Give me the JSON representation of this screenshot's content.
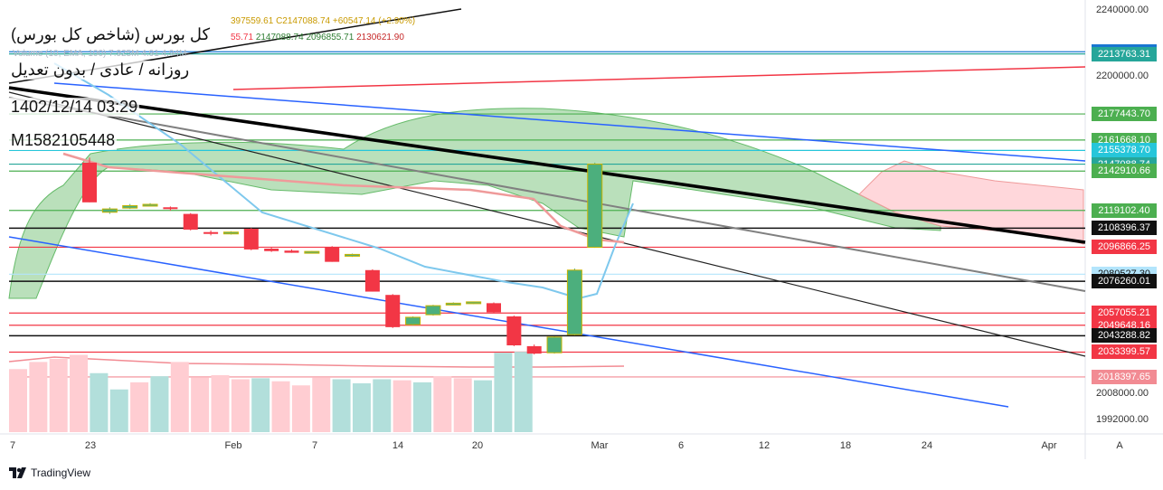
{
  "info": {
    "title": "کل بورس (شاخص کل بورس)",
    "subtitle": "روزانه / عادی / بدون تعدیل",
    "datetime": "1402/12/14 03:29",
    "code": "M1582105448"
  },
  "legend": {
    "ohlc_fragment_a": "397559.61",
    "ohlc_close": "C2147088.74",
    "ohlc_change": "+60547.14 (+2.90%)",
    "ind_a": "55.71",
    "ind_b": "2147088.74",
    "ind_c": "2096855.71",
    "ind_d": "2130621.90",
    "volume": "Volume (10, EMA, 100)  7.925M  4.91  4.94M"
  },
  "chart_data": {
    "type": "candlestick",
    "title": "کل بورس (شاخص کل بورس)",
    "ylim": [
      1985000,
      2242000
    ],
    "yticks": [
      "2240000.00",
      "2200000.00",
      "2008000.00",
      "1992000.00"
    ],
    "xticks": [
      "7",
      "23",
      "Feb",
      "7",
      "14",
      "20",
      "Mar",
      "6",
      "12",
      "18",
      "24",
      "Apr"
    ],
    "candles": [
      {
        "o": 2148000,
        "h": 2151000,
        "l": 2124000,
        "c": 2124000
      },
      {
        "o": 2118000,
        "h": 2121000,
        "l": 2117000,
        "c": 2120000
      },
      {
        "o": 2120500,
        "h": 2123000,
        "l": 2120000,
        "c": 2122000
      },
      {
        "o": 2122500,
        "h": 2123500,
        "l": 2121500,
        "c": 2122800
      },
      {
        "o": 2121000,
        "h": 2121500,
        "l": 2119000,
        "c": 2120000
      },
      {
        "o": 2117000,
        "h": 2117500,
        "l": 2107000,
        "c": 2107500
      },
      {
        "o": 2106000,
        "h": 2107000,
        "l": 2104000,
        "c": 2105000
      },
      {
        "o": 2105500,
        "h": 2106500,
        "l": 2104500,
        "c": 2106000
      },
      {
        "o": 2108000,
        "h": 2108500,
        "l": 2095000,
        "c": 2095500
      },
      {
        "o": 2096000,
        "h": 2096500,
        "l": 2094000,
        "c": 2094500
      },
      {
        "o": 2094800,
        "h": 2095500,
        "l": 2093500,
        "c": 2093500
      },
      {
        "o": 2093800,
        "h": 2094500,
        "l": 2093500,
        "c": 2094300
      },
      {
        "o": 2097000,
        "h": 2097500,
        "l": 2088000,
        "c": 2088000
      },
      {
        "o": 2092000,
        "h": 2093000,
        "l": 2091000,
        "c": 2092500
      },
      {
        "o": 2083000,
        "h": 2083500,
        "l": 2070000,
        "c": 2070000
      },
      {
        "o": 2068000,
        "h": 2068500,
        "l": 2048000,
        "c": 2048500
      },
      {
        "o": 2050000,
        "h": 2055000,
        "l": 2049500,
        "c": 2054500
      },
      {
        "o": 2056000,
        "h": 2062000,
        "l": 2055500,
        "c": 2061500
      },
      {
        "o": 2063000,
        "h": 2063500,
        "l": 2062000,
        "c": 2063000
      },
      {
        "o": 2063500,
        "h": 2064000,
        "l": 2062500,
        "c": 2063800
      },
      {
        "o": 2063000,
        "h": 2063500,
        "l": 2057000,
        "c": 2057500
      },
      {
        "o": 2055000,
        "h": 2055500,
        "l": 2037000,
        "c": 2037500
      },
      {
        "o": 2037000,
        "h": 2038000,
        "l": 2032000,
        "c": 2032500
      },
      {
        "o": 2033000,
        "h": 2043000,
        "l": 2032500,
        "c": 2042500
      },
      {
        "o": 2044000,
        "h": 2084000,
        "l": 2043500,
        "c": 2083000
      },
      {
        "o": 2096800,
        "h": 2148000,
        "l": 2096500,
        "c": 2147088.74
      }
    ],
    "volume": [
      6.2,
      6.9,
      7.2,
      7.6,
      5.8,
      4.2,
      4.9,
      5.5,
      6.9,
      5.4,
      5.6,
      5.2,
      5.3,
      5.0,
      4.6,
      5.4,
      5.2,
      4.8,
      5.2,
      5.1,
      4.9,
      5.5,
      5.3,
      5.1,
      7.8,
      7.9
    ],
    "volume_up": [
      false,
      false,
      false,
      false,
      true,
      true,
      false,
      true,
      false,
      false,
      false,
      false,
      true,
      false,
      false,
      false,
      true,
      true,
      true,
      false,
      true,
      false,
      false,
      true,
      true,
      true
    ],
    "horizontal_levels": [
      {
        "value": 2215081.76,
        "label": "2215081.76",
        "bg": "#1976d2",
        "fg": "#ffffff"
      },
      {
        "value": 2213763.31,
        "label": "2213763.31",
        "bg": "#26a69a",
        "fg": "#ffffff"
      },
      {
        "value": 2177443.7,
        "label": "2177443.70",
        "bg": "#4caf50",
        "fg": "#ffffff"
      },
      {
        "value": 2161668.1,
        "label": "2161668.10",
        "bg": "#4caf50",
        "fg": "#ffffff"
      },
      {
        "value": 2155378.7,
        "label": "2155378.70",
        "bg": "#26c6da",
        "fg": "#ffffff"
      },
      {
        "value": 2147088.74,
        "label": "2147088.74",
        "bg": "#26a69a",
        "fg": "#ffffff"
      },
      {
        "value": 2142910.66,
        "label": "2142910.66",
        "bg": "#4caf50",
        "fg": "#ffffff"
      },
      {
        "value": 2119102.4,
        "label": "2119102.40",
        "bg": "#4caf50",
        "fg": "#ffffff"
      },
      {
        "value": 2108396.37,
        "label": "2108396.37",
        "bg": "#111111",
        "fg": "#ffffff"
      },
      {
        "value": 2096866.25,
        "label": "2096866.25",
        "bg": "#f23645",
        "fg": "#ffffff"
      },
      {
        "value": 2080527.3,
        "label": "2080527.30",
        "bg": "#b3e5fc",
        "fg": "#111111"
      },
      {
        "value": 2076260.01,
        "label": "2076260.01",
        "bg": "#111111",
        "fg": "#ffffff"
      },
      {
        "value": 2057055.21,
        "label": "2057055.21",
        "bg": "#f23645",
        "fg": "#ffffff"
      },
      {
        "value": 2049648.16,
        "label": "2049648.16",
        "bg": "#f23645",
        "fg": "#ffffff"
      },
      {
        "value": 2043288.82,
        "label": "2043288.82",
        "bg": "#111111",
        "fg": "#ffffff"
      },
      {
        "value": 2033399.57,
        "label": "2033399.57",
        "bg": "#f23645",
        "fg": "#ffffff"
      },
      {
        "value": 2018397.65,
        "label": "2018397.65",
        "bg": "#f28b93",
        "fg": "#ffffff"
      }
    ]
  },
  "colors": {
    "up": "#4caf7d",
    "down": "#f23645",
    "cloud_up": "#81c784",
    "cloud_down": "#ffcdd2",
    "trend_blue": "#2962ff",
    "trend_black": "#000000"
  },
  "brand": "TradingView",
  "auto_button": "A"
}
